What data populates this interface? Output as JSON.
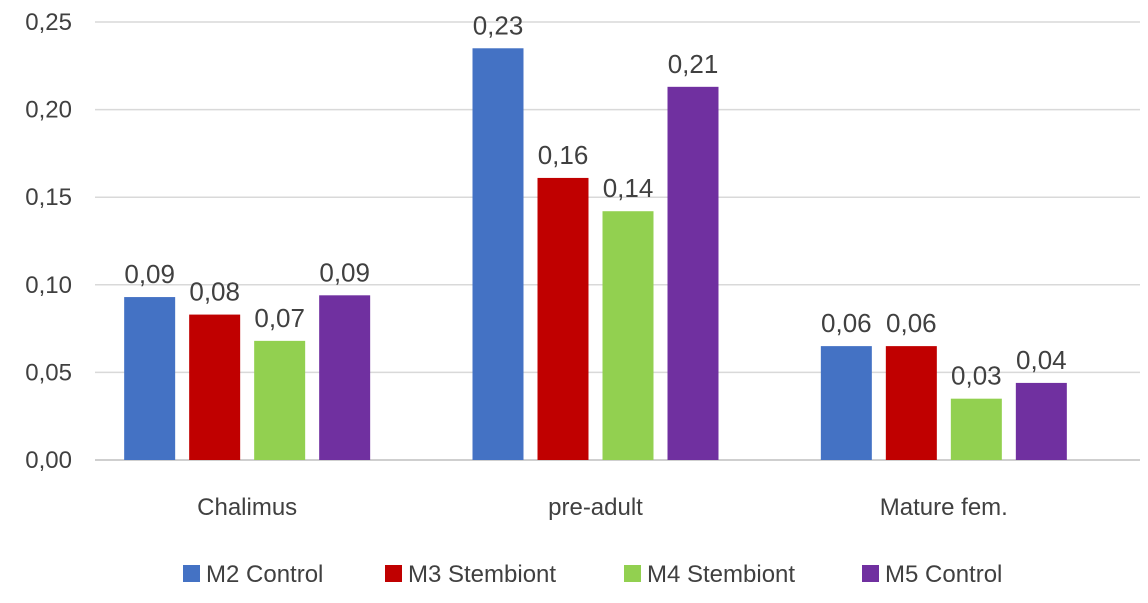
{
  "chart_data": {
    "type": "bar",
    "categories": [
      "Chalimus",
      "pre-adult",
      "Mature fem."
    ],
    "series": [
      {
        "name": "M2 Control",
        "color": "#4472c4",
        "values": [
          0.093,
          0.235,
          0.065
        ],
        "labels": [
          "0,09",
          "0,23",
          "0,06"
        ]
      },
      {
        "name": "M3 Stembiont",
        "color": "#c00000",
        "values": [
          0.083,
          0.161,
          0.065
        ],
        "labels": [
          "0,08",
          "0,16",
          "0,06"
        ]
      },
      {
        "name": "M4 Stembiont",
        "color": "#92d050",
        "values": [
          0.068,
          0.142,
          0.035
        ],
        "labels": [
          "0,07",
          "0,14",
          "0,03"
        ]
      },
      {
        "name": "M5 Control",
        "color": "#7030a0",
        "values": [
          0.094,
          0.213,
          0.044
        ],
        "labels": [
          "0,09",
          "0,21",
          "0,04"
        ]
      }
    ],
    "ylim": [
      0,
      0.25
    ],
    "yticks": [
      0,
      0.05,
      0.1,
      0.15,
      0.2,
      0.25
    ],
    "ytick_labels": [
      "0,00",
      "0,05",
      "0,10",
      "0,15",
      "0,20",
      "0,25"
    ],
    "grid": true,
    "legend": "bottom",
    "title": "",
    "xlabel": "",
    "ylabel": ""
  }
}
